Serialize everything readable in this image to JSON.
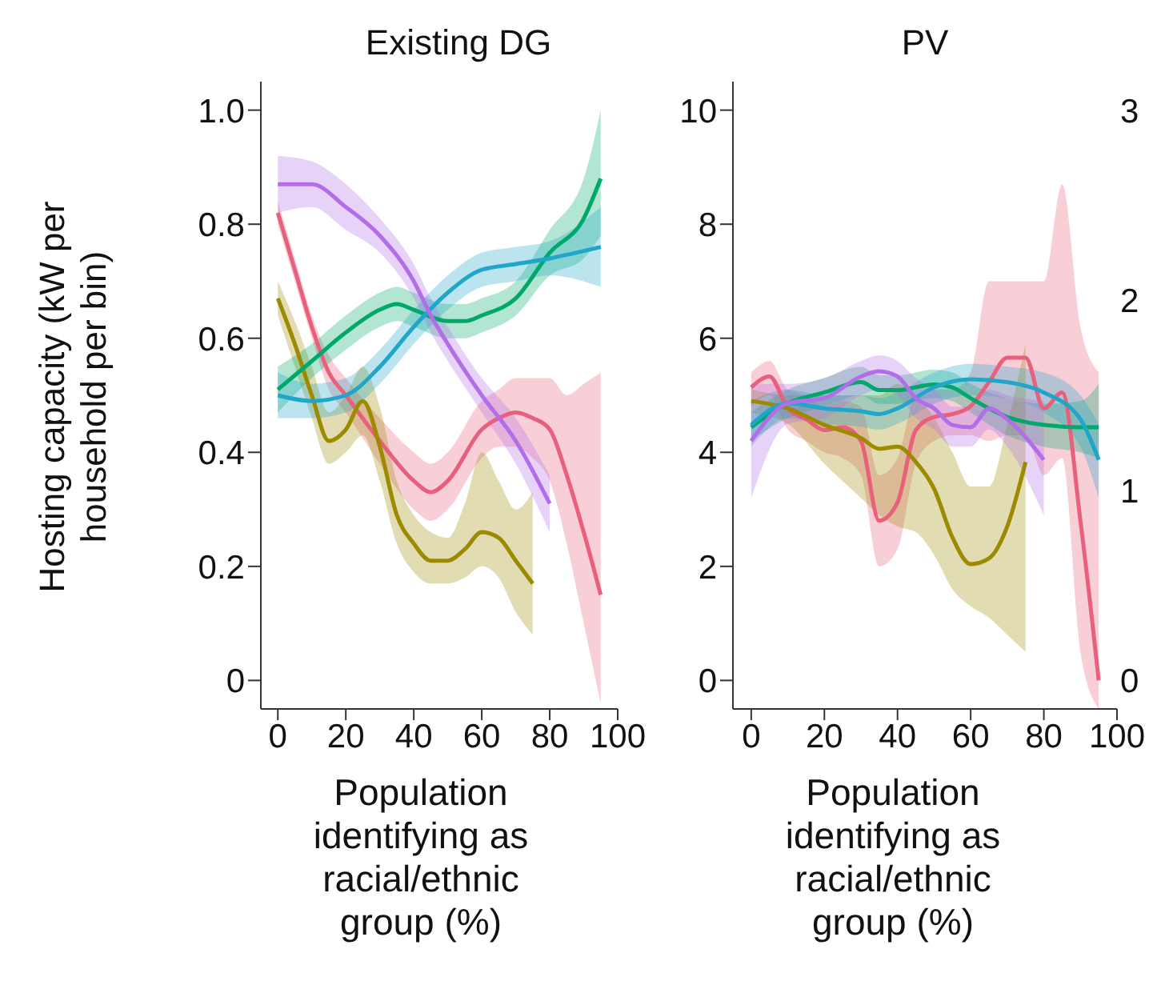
{
  "chart_data": [
    {
      "type": "line",
      "title": "Existing DG",
      "xlabel": "Population identifying as racial/ethnic group (%)",
      "ylabel": "Hosting capacity (kW per household per bin)",
      "xlim": [
        -5,
        100
      ],
      "xticks": [
        0,
        20,
        40,
        60,
        80,
        100
      ],
      "ylim": [
        -0.05,
        1.05
      ],
      "yticks": [
        0,
        0.2,
        0.4,
        0.6,
        0.8,
        {
          "value": 1,
          "label": "1.0"
        }
      ],
      "series": [
        {
          "color": "#e8607c",
          "x": [
            0,
            5,
            10,
            15,
            20,
            30,
            40,
            45,
            50,
            60,
            65,
            70,
            75,
            80,
            85,
            90,
            95
          ],
          "values": [
            0.82,
            0.72,
            0.62,
            0.54,
            0.5,
            0.42,
            0.35,
            0.33,
            0.35,
            0.44,
            0.46,
            0.47,
            0.46,
            0.44,
            0.36,
            0.26,
            0.15
          ],
          "lower": [
            0.8,
            0.7,
            0.6,
            0.51,
            0.47,
            0.38,
            0.3,
            0.28,
            0.3,
            0.39,
            0.41,
            0.41,
            0.39,
            0.35,
            0.24,
            0.1,
            -0.04
          ],
          "upper": [
            0.84,
            0.74,
            0.64,
            0.57,
            0.53,
            0.46,
            0.4,
            0.38,
            0.4,
            0.49,
            0.51,
            0.53,
            0.53,
            0.53,
            0.5,
            0.52,
            0.54
          ]
        },
        {
          "color": "#9c8a00",
          "x": [
            0,
            5,
            10,
            15,
            20,
            25,
            30,
            35,
            40,
            45,
            50,
            55,
            60,
            65,
            70,
            75
          ],
          "values": [
            0.67,
            0.59,
            0.5,
            0.42,
            0.44,
            0.49,
            0.41,
            0.29,
            0.24,
            0.21,
            0.21,
            0.23,
            0.26,
            0.25,
            0.21,
            0.17
          ],
          "lower": [
            0.64,
            0.55,
            0.46,
            0.38,
            0.4,
            0.43,
            0.35,
            0.24,
            0.19,
            0.17,
            0.17,
            0.18,
            0.2,
            0.18,
            0.12,
            0.08
          ],
          "upper": [
            0.7,
            0.63,
            0.55,
            0.47,
            0.5,
            0.55,
            0.48,
            0.35,
            0.29,
            0.26,
            0.25,
            0.31,
            0.4,
            0.35,
            0.3,
            0.33
          ]
        },
        {
          "color": "#00a86b",
          "x": [
            0,
            10,
            20,
            30,
            35,
            40,
            50,
            55,
            60,
            70,
            80,
            90,
            95
          ],
          "values": [
            0.51,
            0.56,
            0.61,
            0.65,
            0.66,
            0.65,
            0.63,
            0.63,
            0.64,
            0.67,
            0.75,
            0.81,
            0.88
          ],
          "lower": [
            0.47,
            0.53,
            0.58,
            0.62,
            0.63,
            0.62,
            0.6,
            0.6,
            0.61,
            0.64,
            0.71,
            0.74,
            0.78
          ],
          "upper": [
            0.55,
            0.59,
            0.64,
            0.68,
            0.69,
            0.68,
            0.66,
            0.66,
            0.67,
            0.7,
            0.79,
            0.88,
            1.0
          ]
        },
        {
          "color": "#1fa6c9",
          "x": [
            0,
            10,
            20,
            30,
            40,
            50,
            60,
            70,
            80,
            95
          ],
          "values": [
            0.5,
            0.49,
            0.5,
            0.55,
            0.62,
            0.68,
            0.72,
            0.73,
            0.74,
            0.76
          ],
          "lower": [
            0.46,
            0.46,
            0.47,
            0.52,
            0.59,
            0.65,
            0.69,
            0.7,
            0.71,
            0.69
          ],
          "upper": [
            0.54,
            0.52,
            0.53,
            0.58,
            0.65,
            0.71,
            0.75,
            0.76,
            0.77,
            0.83
          ]
        },
        {
          "color": "#b26de8",
          "x": [
            0,
            10,
            20,
            30,
            40,
            45,
            50,
            60,
            70,
            80
          ],
          "values": [
            0.87,
            0.87,
            0.83,
            0.78,
            0.7,
            0.64,
            0.59,
            0.5,
            0.42,
            0.31
          ],
          "lower": [
            0.82,
            0.83,
            0.79,
            0.75,
            0.67,
            0.61,
            0.56,
            0.47,
            0.38,
            0.26
          ],
          "upper": [
            0.92,
            0.91,
            0.87,
            0.81,
            0.73,
            0.67,
            0.62,
            0.53,
            0.46,
            0.36
          ]
        }
      ]
    },
    {
      "type": "line",
      "title": "PV",
      "xlabel": "Population identifying as racial/ethnic group (%)",
      "xlim": [
        -5,
        100
      ],
      "xticks": [
        0,
        20,
        40,
        60,
        80,
        100
      ],
      "ylim": [
        -0.5,
        10.5
      ],
      "yticks": [
        0,
        2,
        4,
        6,
        8,
        10
      ],
      "y2lim": [
        -0.15,
        3.15
      ],
      "y2ticks": [
        0,
        1,
        2,
        3
      ],
      "series": [
        {
          "color": "#e8607c",
          "x": [
            0,
            5,
            10,
            15,
            20,
            25,
            30,
            35,
            40,
            45,
            50,
            55,
            60,
            65,
            70,
            75,
            80,
            85,
            90,
            95
          ],
          "values": [
            5.14,
            5.33,
            4.77,
            4.58,
            4.39,
            4.44,
            4.2,
            2.8,
            3.12,
            4.39,
            4.62,
            4.67,
            4.81,
            5.23,
            5.66,
            5.66,
            4.77,
            5.05,
            2.8,
            0
          ],
          "lower": [
            4.8,
            5.0,
            4.4,
            4.2,
            4.0,
            3.9,
            3.6,
            2.0,
            2.3,
            3.8,
            4.2,
            4.3,
            4.3,
            4.2,
            4.3,
            4.3,
            3.6,
            3.9,
            0.5,
            -0.5
          ],
          "upper": [
            5.4,
            5.6,
            5.1,
            5.0,
            4.8,
            4.9,
            4.8,
            3.6,
            3.9,
            5.0,
            5.1,
            5.1,
            5.4,
            7.0,
            7.0,
            7.0,
            7.0,
            8.7,
            6.2,
            5.4
          ]
        },
        {
          "color": "#9c8a00",
          "x": [
            0,
            10,
            20,
            30,
            35,
            40,
            45,
            50,
            55,
            60,
            65,
            70,
            75
          ],
          "values": [
            4.9,
            4.77,
            4.48,
            4.25,
            4.06,
            4.1,
            3.83,
            3.36,
            2.51,
            2.04,
            2.14,
            2.7,
            3.83
          ],
          "lower": [
            4.7,
            4.5,
            3.8,
            3.2,
            2.9,
            2.7,
            2.6,
            2.2,
            1.6,
            1.3,
            1.1,
            0.8,
            0.5
          ],
          "upper": [
            5.1,
            5.0,
            5.0,
            5.0,
            5.0,
            5.2,
            5.0,
            4.6,
            4.0,
            3.4,
            3.4,
            4.5,
            5.9
          ]
        },
        {
          "color": "#00a86b",
          "x": [
            0,
            10,
            20,
            30,
            35,
            40,
            50,
            55,
            60,
            70,
            80,
            90,
            95
          ],
          "values": [
            4.44,
            4.86,
            5.05,
            5.23,
            5.09,
            5.09,
            5.19,
            5.14,
            4.95,
            4.62,
            4.48,
            4.44,
            4.44
          ],
          "lower": [
            4.2,
            4.6,
            4.8,
            5.0,
            4.85,
            4.85,
            4.95,
            4.9,
            4.7,
            4.3,
            4.1,
            4.0,
            3.9
          ],
          "upper": [
            4.7,
            5.1,
            5.3,
            5.5,
            5.35,
            5.35,
            5.45,
            5.4,
            5.2,
            4.95,
            4.85,
            4.9,
            5.2
          ]
        },
        {
          "color": "#1fa6c9",
          "x": [
            0,
            10,
            20,
            30,
            35,
            40,
            50,
            60,
            70,
            80,
            90,
            95
          ],
          "values": [
            4.48,
            4.86,
            4.77,
            4.72,
            4.67,
            4.77,
            5.14,
            5.28,
            5.23,
            5.05,
            4.58,
            3.87
          ],
          "lower": [
            4.1,
            4.6,
            4.5,
            4.45,
            4.4,
            4.5,
            4.85,
            5.0,
            4.95,
            4.7,
            4.1,
            3.2
          ],
          "upper": [
            4.9,
            5.1,
            5.0,
            5.0,
            4.95,
            5.05,
            5.4,
            5.55,
            5.5,
            5.4,
            5.0,
            4.5
          ]
        },
        {
          "color": "#b26de8",
          "x": [
            0,
            10,
            20,
            30,
            35,
            40,
            45,
            50,
            55,
            60,
            65,
            70,
            80
          ],
          "values": [
            4.2,
            4.86,
            4.95,
            5.33,
            5.42,
            5.33,
            4.95,
            4.77,
            4.48,
            4.44,
            4.77,
            4.58,
            3.87
          ],
          "lower": [
            3.2,
            4.5,
            4.6,
            5.0,
            5.1,
            5.0,
            4.6,
            4.4,
            4.1,
            4.1,
            4.4,
            4.1,
            2.9
          ],
          "upper": [
            5.2,
            5.2,
            5.3,
            5.6,
            5.7,
            5.6,
            5.3,
            5.1,
            4.8,
            4.8,
            5.1,
            5.0,
            4.9
          ]
        }
      ]
    }
  ]
}
